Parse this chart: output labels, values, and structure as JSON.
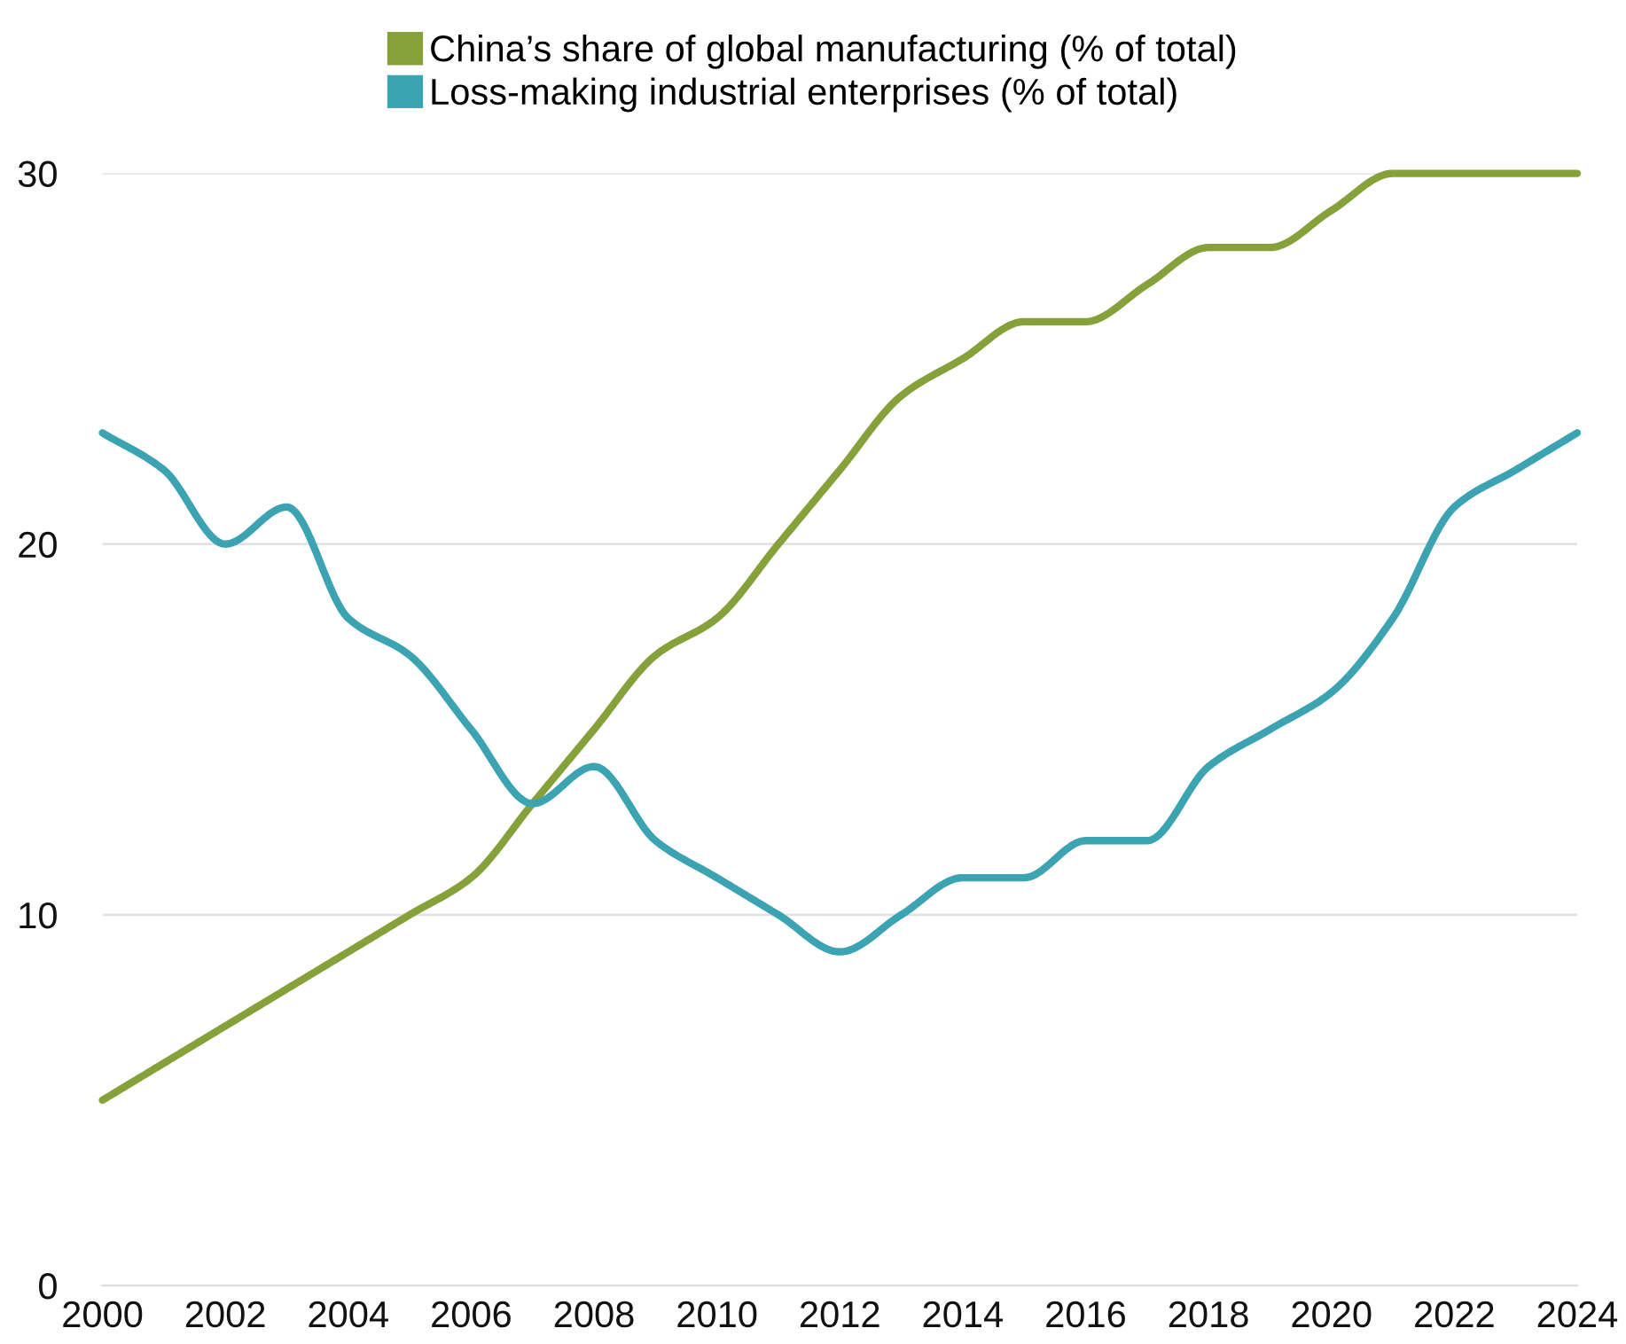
{
  "chart_data": {
    "type": "line",
    "x": [
      2000,
      2001,
      2002,
      2003,
      2004,
      2005,
      2006,
      2007,
      2008,
      2009,
      2010,
      2011,
      2012,
      2013,
      2014,
      2015,
      2016,
      2017,
      2018,
      2019,
      2020,
      2021,
      2022,
      2023,
      2024
    ],
    "series": [
      {
        "name": "China’s share of global manufacturing (% of total)",
        "color": "#86a03a",
        "values": [
          5,
          6,
          7,
          8,
          9,
          10,
          11,
          13,
          15,
          17,
          18,
          20,
          22,
          24,
          25,
          26,
          26,
          27,
          28,
          28,
          29,
          30,
          30,
          30,
          30
        ]
      },
      {
        "name": "Loss-making industrial enterprises (% of total)",
        "color": "#3ba3b2",
        "values": [
          23,
          22,
          20,
          21,
          18,
          17,
          15,
          13,
          14,
          12,
          11,
          10,
          9,
          10,
          11,
          11,
          12,
          12,
          14,
          15,
          16,
          18,
          21,
          22,
          23
        ]
      }
    ],
    "xlim": [
      2000,
      2024
    ],
    "xticks": [
      2000,
      2002,
      2004,
      2006,
      2008,
      2010,
      2012,
      2014,
      2016,
      2018,
      2020,
      2022,
      2024
    ],
    "ylim": [
      0,
      30
    ],
    "yticks": [
      0,
      10,
      20,
      30
    ],
    "grid": "y",
    "legend": "top",
    "marker": "none",
    "line_style": "solid"
  }
}
